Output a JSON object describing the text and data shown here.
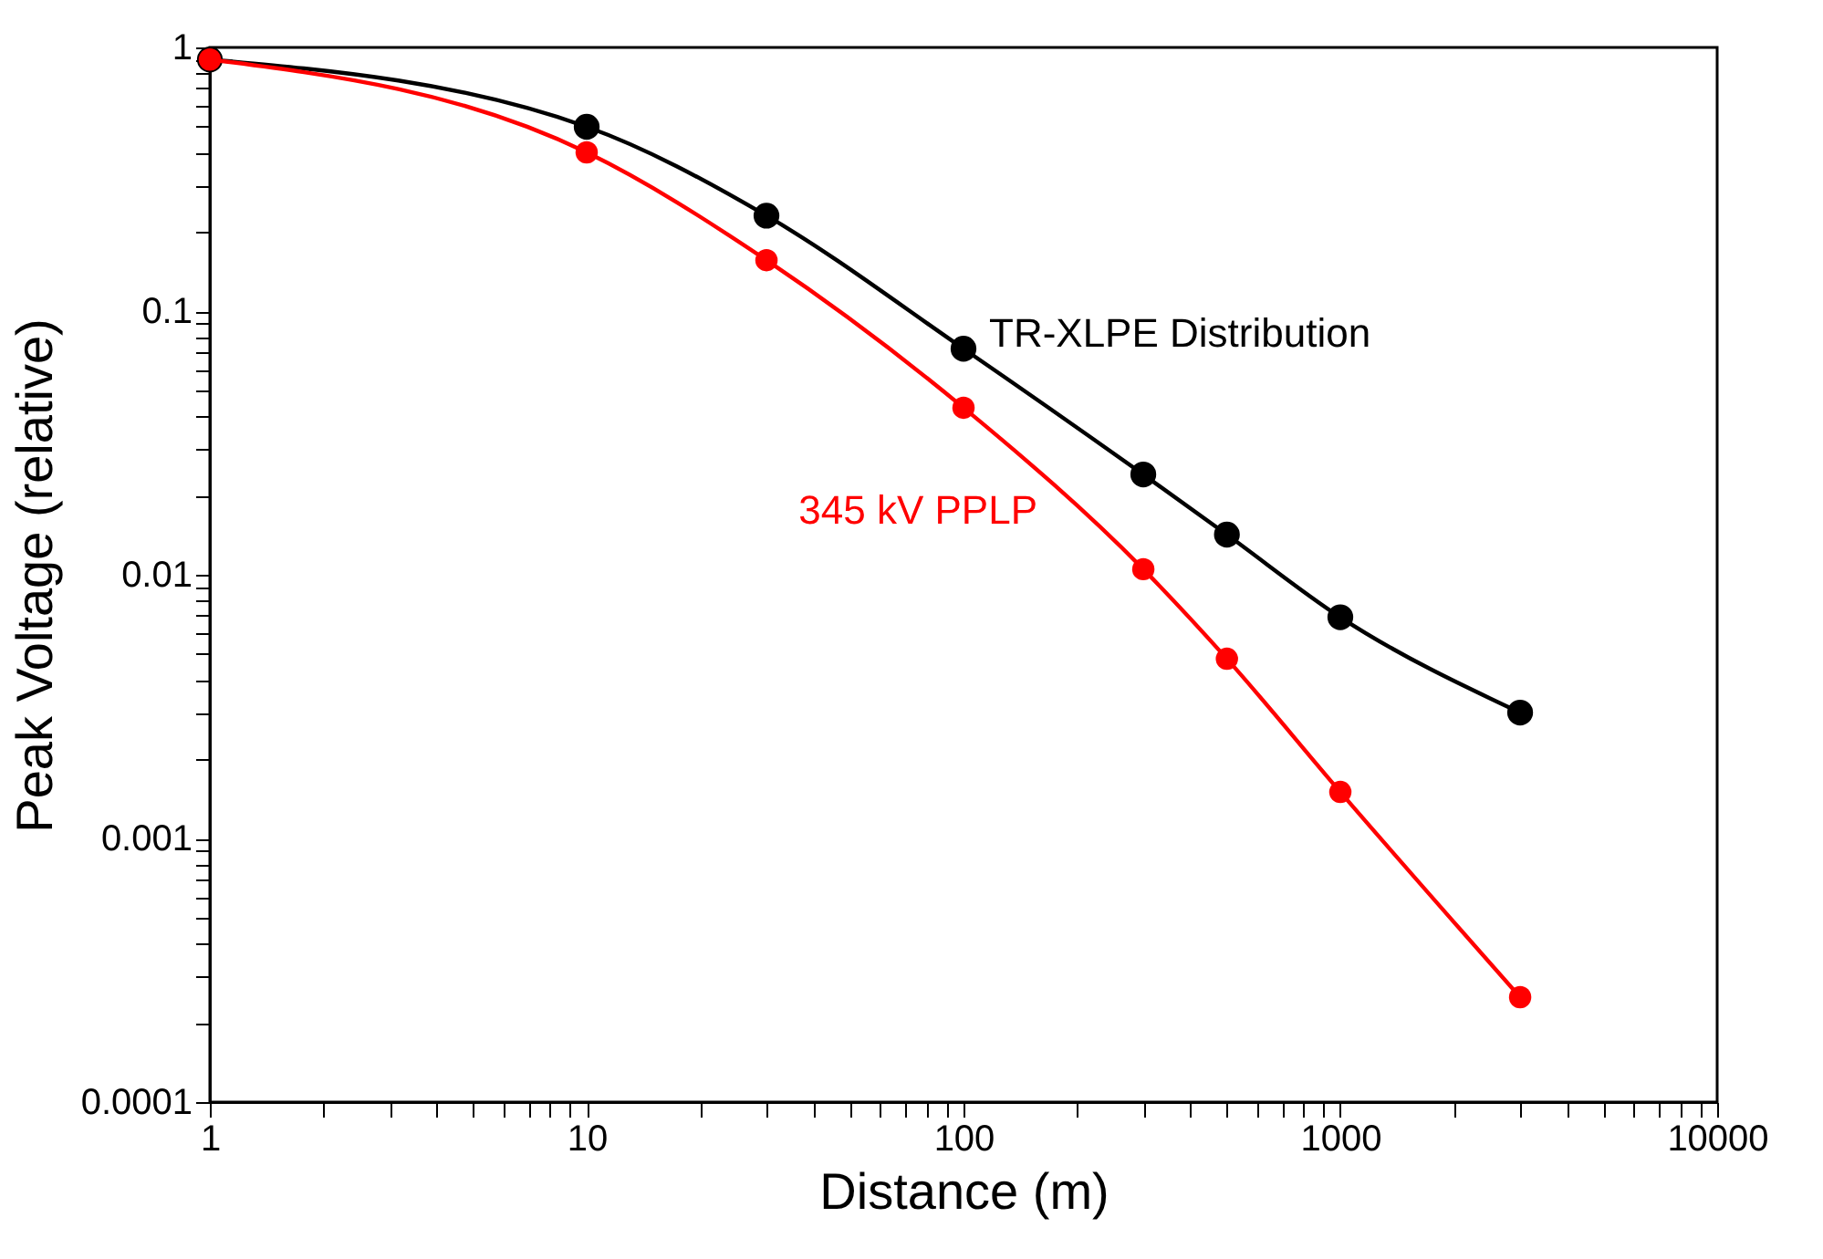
{
  "chart_data": {
    "type": "line",
    "xlabel": "Distance (m)",
    "ylabel": "Peak Voltage (relative)",
    "x": [
      1,
      10,
      30,
      100,
      300,
      500,
      1000,
      3000
    ],
    "series": [
      {
        "name": "TR-XLPE Distribution",
        "color": "#000000",
        "values": [
          0.9,
          0.5,
          0.23,
          0.072,
          0.024,
          0.0142,
          0.0069,
          0.003
        ]
      },
      {
        "name": "345 kV PPLP",
        "color": "#ff0000",
        "values": [
          0.9,
          0.4,
          0.156,
          0.043,
          0.0105,
          0.0048,
          0.0015,
          0.00025
        ]
      }
    ],
    "log": "xy",
    "xlim": [
      1,
      10000
    ],
    "ylim": [
      0.0001,
      1
    ],
    "xticks": [
      1,
      {
        "value": 2,
        "label": null
      },
      {
        "value": 3,
        "label": null
      },
      {
        "value": 4,
        "label": null
      },
      {
        "value": 5,
        "label": null
      },
      {
        "value": 6,
        "label": null
      },
      {
        "value": 7,
        "label": null
      },
      {
        "value": 8,
        "label": null
      },
      {
        "value": 9,
        "label": null
      },
      10,
      {
        "value": 20,
        "label": null
      },
      {
        "value": 30,
        "label": null
      },
      {
        "value": 40,
        "label": null
      },
      {
        "value": 50,
        "label": null
      },
      {
        "value": 60,
        "label": null
      },
      {
        "value": 70,
        "label": null
      },
      {
        "value": 80,
        "label": null
      },
      {
        "value": 90,
        "label": null
      },
      100,
      {
        "value": 200,
        "label": null
      },
      {
        "value": 300,
        "label": null
      },
      {
        "value": 400,
        "label": null
      },
      {
        "value": 500,
        "label": null
      },
      {
        "value": 600,
        "label": null
      },
      {
        "value": 700,
        "label": null
      },
      {
        "value": 800,
        "label": null
      },
      {
        "value": 900,
        "label": null
      },
      1000,
      {
        "value": 2000,
        "label": null
      },
      {
        "value": 3000,
        "label": null
      },
      {
        "value": 4000,
        "label": null
      },
      {
        "value": 5000,
        "label": null
      },
      {
        "value": 6000,
        "label": null
      },
      {
        "value": 7000,
        "label": null
      },
      {
        "value": 8000,
        "label": null
      },
      {
        "value": 9000,
        "label": null
      },
      10000
    ],
    "yticks": [
      0.0001,
      {
        "value": 0.0002,
        "label": null
      },
      {
        "value": 0.0003,
        "label": null
      },
      {
        "value": 0.0004,
        "label": null
      },
      {
        "value": 0.0005,
        "label": null
      },
      {
        "value": 0.0006,
        "label": null
      },
      {
        "value": 0.0007,
        "label": null
      },
      {
        "value": 0.0008,
        "label": null
      },
      {
        "value": 0.0009,
        "label": null
      },
      0.001,
      {
        "value": 0.002,
        "label": null
      },
      {
        "value": 0.003,
        "label": null
      },
      {
        "value": 0.004,
        "label": null
      },
      {
        "value": 0.005,
        "label": null
      },
      {
        "value": 0.006,
        "label": null
      },
      {
        "value": 0.007,
        "label": null
      },
      {
        "value": 0.008,
        "label": null
      },
      {
        "value": 0.009,
        "label": null
      },
      0.01,
      {
        "value": 0.02,
        "label": null
      },
      {
        "value": 0.03,
        "label": null
      },
      {
        "value": 0.04,
        "label": null
      },
      {
        "value": 0.05,
        "label": null
      },
      {
        "value": 0.06,
        "label": null
      },
      {
        "value": 0.07,
        "label": null
      },
      {
        "value": 0.08,
        "label": null
      },
      {
        "value": 0.09,
        "label": null
      },
      0.1,
      {
        "value": 0.2,
        "label": null
      },
      {
        "value": 0.3,
        "label": null
      },
      {
        "value": 0.4,
        "label": null
      },
      {
        "value": 0.5,
        "label": null
      },
      {
        "value": 0.6,
        "label": null
      },
      {
        "value": 0.7,
        "label": null
      },
      {
        "value": 0.8,
        "label": null
      },
      {
        "value": 0.9,
        "label": null
      },
      1
    ],
    "marker": "circle",
    "line_style": "solid",
    "grid": false,
    "legend": false
  }
}
